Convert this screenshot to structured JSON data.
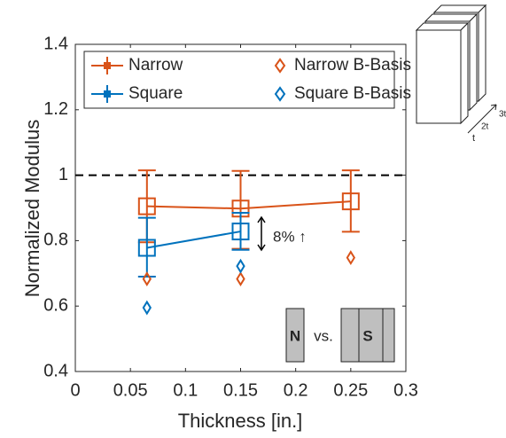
{
  "chart_data": {
    "type": "errorbar",
    "x_label": "Thickness [in.]",
    "y_label": "Normalized Modulus",
    "xlim": [
      0,
      0.3
    ],
    "xticks": [
      0,
      0.05,
      0.1,
      0.15,
      0.2,
      0.25,
      0.3
    ],
    "ylim": [
      0.4,
      1.4
    ],
    "yticks": [
      0.4,
      0.6,
      0.8,
      1,
      1.2,
      1.4
    ],
    "reference_line": 1,
    "series": [
      {
        "name": "Narrow",
        "color": "#d95319",
        "marker": "square",
        "x": [
          0.065,
          0.15,
          0.25
        ],
        "values": [
          0.905,
          0.898,
          0.92
        ],
        "upper": [
          1.015,
          1.013,
          1.015
        ],
        "lower": [
          0.795,
          0.775,
          0.827
        ]
      },
      {
        "name": "Square",
        "color": "#0072bd",
        "marker": "square",
        "x": [
          0.065,
          0.15
        ],
        "values": [
          0.778,
          0.828
        ],
        "upper": [
          0.87,
          0.885
        ],
        "lower": [
          0.69,
          0.772
        ]
      },
      {
        "name": "Narrow B-Basis",
        "color": "#d95319",
        "marker": "diamond",
        "x": [
          0.065,
          0.15,
          0.25
        ],
        "values": [
          0.683,
          0.683,
          0.748
        ]
      },
      {
        "name": "Square B-Basis",
        "color": "#0072bd",
        "marker": "diamond",
        "x": [
          0.065,
          0.15
        ],
        "values": [
          0.595,
          0.722
        ]
      }
    ],
    "annotations": [
      "8% ↑",
      "N",
      "vs.",
      "S",
      "t",
      "2t",
      "3t"
    ]
  }
}
